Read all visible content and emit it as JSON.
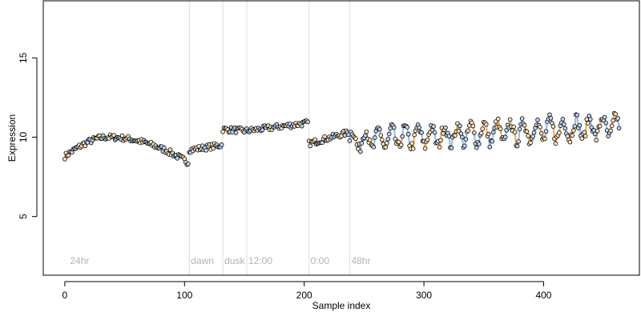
{
  "chart_data": {
    "type": "scatter",
    "xlabel": "Sample index",
    "ylabel": "Expression",
    "xlim": [
      -18,
      480
    ],
    "ylim": [
      1.3,
      18.6
    ],
    "x_ticks": [
      0,
      100,
      200,
      300,
      400
    ],
    "x_tick_labels": [
      "0",
      "100",
      "200",
      "300",
      "400"
    ],
    "y_ticks": [
      5,
      10,
      15
    ],
    "y_tick_labels": [
      "5",
      "10",
      "15"
    ],
    "grid": false,
    "legend": "none",
    "colors": {
      "point_edge": "#000000",
      "fill_a": "#fde3bd",
      "fill_b": "#bfd4ee",
      "line_a": "#e9a14f",
      "line_b": "#8fb1de",
      "annotation": "#b3b3b3",
      "vline": "#dcdcdc"
    },
    "annotations": [
      {
        "x": 3,
        "label": "24hr"
      },
      {
        "x": 104,
        "label": "dawn"
      },
      {
        "x": 132,
        "label": "dusk"
      },
      {
        "x": 152,
        "label": "12:00"
      },
      {
        "x": 204,
        "label": "0:00"
      },
      {
        "x": 238,
        "label": "48hr"
      }
    ],
    "vlines": [
      104,
      132,
      152,
      204,
      238
    ],
    "segments": [
      {
        "x0": 0,
        "x1": 103,
        "type": "arc",
        "peak_x": 36,
        "y_start": 8.8,
        "y_peak": 10.0,
        "y_end": 8.4
      },
      {
        "x0": 104,
        "x1": 131,
        "type": "flat",
        "y_start": 9.2,
        "y_end": 9.5
      },
      {
        "x0": 132,
        "x1": 151,
        "type": "flat",
        "y_start": 10.5,
        "y_end": 10.4
      },
      {
        "x0": 152,
        "x1": 203,
        "type": "flat",
        "y_start": 10.4,
        "y_end": 10.9
      },
      {
        "x0": 204,
        "x1": 237,
        "type": "flat",
        "y_start": 9.6,
        "y_end": 10.3
      },
      {
        "x0": 238,
        "x1": 463,
        "type": "oscillate",
        "period": 11,
        "base": 9.8,
        "base_end": 10.7,
        "amp": 0.6,
        "amp_end": 0.65
      }
    ],
    "n_points": 464
  }
}
